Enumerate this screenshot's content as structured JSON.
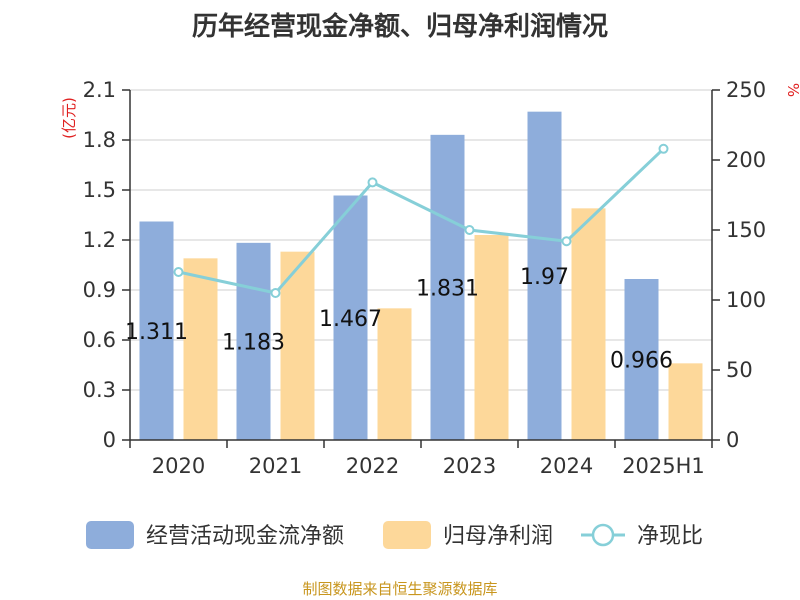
{
  "chart_data": {
    "type": "bar",
    "title": "历年经营现金净额、归母净利润情况",
    "categories": [
      "2020",
      "2021",
      "2022",
      "2023",
      "2024",
      "2025H1"
    ],
    "y_left": {
      "label": "(亿元)",
      "ticks": [
        "0",
        "0.3",
        "0.6",
        "0.9",
        "1.2",
        "1.5",
        "1.8",
        "2.1"
      ],
      "range": [
        0,
        2.1
      ]
    },
    "y_right": {
      "label": "%",
      "ticks": [
        "0",
        "50",
        "100",
        "150",
        "200",
        "250"
      ],
      "range": [
        0,
        250
      ]
    },
    "series": [
      {
        "name": "经营活动现金流净额",
        "type": "bar",
        "axis": "left",
        "color": "#8eaddb",
        "values": [
          1.311,
          1.183,
          1.467,
          1.831,
          1.97,
          0.966
        ],
        "labels": [
          "1.311",
          "1.183",
          "1.467",
          "1.831",
          "1.97",
          "0.966"
        ]
      },
      {
        "name": "归母净利润",
        "type": "bar",
        "axis": "left",
        "color": "#fdd89a",
        "values": [
          1.09,
          1.13,
          0.79,
          1.23,
          1.39,
          0.46
        ]
      },
      {
        "name": "净现比",
        "type": "line",
        "axis": "right",
        "color": "#86cfd8",
        "values": [
          120,
          105,
          184,
          150,
          142,
          208
        ]
      }
    ],
    "legend_position": "bottom",
    "grid": true
  },
  "source": "制图数据来自恒生聚源数据库"
}
